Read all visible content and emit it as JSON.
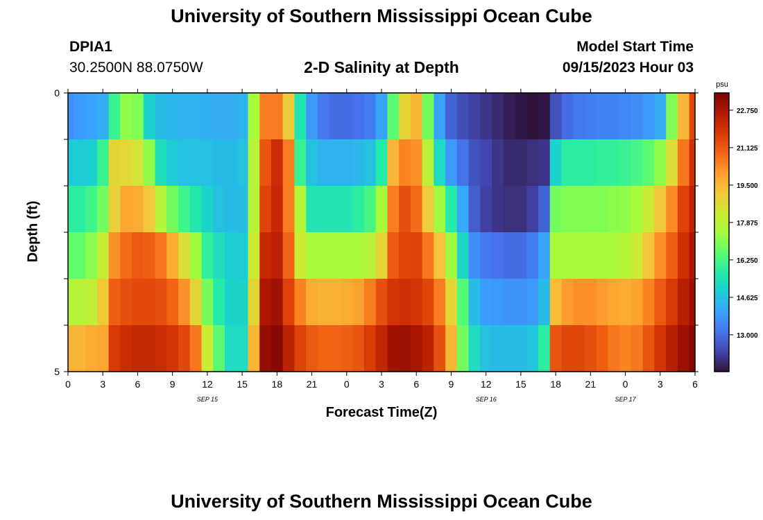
{
  "header": {
    "title": "University of Southern Mississippi Ocean Cube",
    "station": "DPIA1",
    "coords": "30.2500N  88.0750W",
    "subtitle": "2-D Salinity at Depth",
    "model_start_label": "Model Start Time",
    "model_start_value": "09/15/2023 Hour 03"
  },
  "footer": {
    "title": "University of Southern Mississippi Ocean Cube"
  },
  "chart_data": {
    "type": "heatmap",
    "title": "2-D Salinity at Depth",
    "xlabel": "Forecast Time(Z)",
    "ylabel": "Depth (ft)",
    "x_tick_labels": [
      "0",
      "3",
      "6",
      "9",
      "12",
      "15",
      "18",
      "21",
      "0",
      "3",
      "6",
      "9",
      "12",
      "15",
      "18",
      "21",
      "0",
      "3",
      "6"
    ],
    "date_labels": [
      {
        "text": "SEP 15",
        "tick": "12"
      },
      {
        "text": "SEP 16",
        "tick": "12"
      },
      {
        "text": "SEP 17",
        "tick": "0"
      }
    ],
    "x_range_hours": [
      0,
      54
    ],
    "y_tick_labels": [
      "0",
      "5"
    ],
    "ylim": [
      0,
      5
    ],
    "colorbar": {
      "unit": "psu",
      "min": 11.4,
      "max": 23.5,
      "labels": [
        "22.750",
        "21.125",
        "19.500",
        "17.875",
        "16.250",
        "14.625",
        "13.000"
      ],
      "colormap": [
        "#30123b",
        "#4145ab",
        "#4675ed",
        "#39a2fc",
        "#1bcfd4",
        "#24eca6",
        "#61fc6c",
        "#a4fc3b",
        "#d1e834",
        "#f3c63a",
        "#fe9b2d",
        "#f36315",
        "#d93806",
        "#b11901",
        "#7a0402"
      ]
    },
    "time_hours": [
      0,
      1,
      2,
      3,
      4,
      5,
      6,
      7,
      8,
      9,
      10,
      11,
      12,
      13,
      14,
      15,
      16,
      17,
      18,
      19,
      20,
      21,
      22,
      23,
      24,
      25,
      26,
      27,
      28,
      29,
      30,
      31,
      32,
      33,
      34,
      35,
      36,
      37,
      38,
      39,
      40,
      41,
      42,
      43,
      44,
      45,
      46,
      47,
      48,
      49,
      50,
      51,
      52,
      53,
      54
    ],
    "depth_rows_ft": [
      0,
      1,
      2,
      3,
      4,
      5
    ],
    "salinity_psu": [
      [
        13.6,
        13.8,
        14.0,
        14.2,
        16.0,
        17.2,
        17.0,
        15.0,
        14.5,
        14.4,
        14.3,
        14.3,
        14.2,
        14.2,
        14.2,
        14.3,
        17.5,
        20.5,
        20.5,
        19.0,
        15.5,
        13.8,
        13.2,
        13.0,
        13.0,
        13.1,
        13.3,
        14.0,
        16.5,
        18.8,
        19.5,
        16.8,
        14.0,
        12.8,
        12.4,
        12.2,
        12.0,
        11.8,
        11.6,
        11.5,
        11.4,
        11.5,
        12.5,
        13.0,
        13.2,
        13.3,
        13.4,
        13.4,
        13.5,
        13.6,
        13.8,
        14.2,
        17.0,
        19.5,
        21.5
      ],
      [
        14.8,
        14.8,
        14.9,
        16.0,
        18.8,
        18.7,
        18.4,
        17.2,
        15.3,
        14.8,
        14.6,
        14.6,
        14.6,
        14.5,
        14.5,
        14.6,
        17.8,
        21.2,
        22.1,
        20.5,
        16.0,
        14.6,
        14.3,
        14.3,
        14.3,
        14.4,
        14.6,
        15.7,
        19.5,
        20.4,
        20.2,
        17.9,
        15.2,
        13.8,
        13.1,
        12.5,
        12.3,
        12.0,
        11.8,
        11.8,
        11.9,
        12.0,
        15.0,
        15.8,
        15.8,
        15.8,
        15.9,
        15.9,
        16.0,
        16.2,
        16.5,
        17.2,
        18.6,
        20.6,
        22.0
      ],
      [
        15.8,
        15.8,
        16.1,
        16.8,
        18.9,
        19.8,
        19.7,
        19.1,
        17.8,
        16.8,
        16.1,
        15.6,
        15.0,
        14.6,
        14.5,
        14.5,
        17.8,
        21.6,
        22.2,
        20.5,
        17.8,
        15.5,
        15.5,
        15.5,
        15.5,
        15.8,
        16.2,
        17.5,
        20.5,
        21.3,
        20.8,
        19.0,
        17.4,
        15.7,
        14.1,
        12.7,
        12.2,
        12.0,
        11.9,
        11.9,
        12.2,
        12.8,
        16.8,
        17.0,
        17.0,
        17.0,
        17.0,
        17.1,
        17.2,
        17.5,
        18.2,
        19.2,
        20.3,
        21.6,
        22.4
      ],
      [
        16.6,
        16.6,
        17.1,
        18.1,
        20.2,
        20.8,
        21.1,
        21.0,
        20.6,
        19.7,
        18.6,
        17.4,
        15.9,
        15.3,
        14.9,
        14.8,
        18.2,
        22.2,
        22.4,
        20.9,
        18.2,
        17.5,
        17.5,
        17.5,
        17.5,
        17.6,
        17.8,
        18.8,
        21.1,
        21.5,
        21.6,
        20.6,
        19.2,
        17.4,
        15.1,
        13.6,
        13.2,
        13.1,
        13.0,
        13.0,
        13.3,
        14.0,
        17.6,
        17.6,
        17.6,
        17.5,
        17.5,
        17.6,
        17.8,
        18.2,
        19.2,
        20.2,
        21.0,
        22.0,
        22.7
      ],
      [
        17.8,
        17.8,
        18.0,
        19.1,
        21.0,
        21.3,
        21.4,
        21.4,
        21.3,
        20.9,
        20.2,
        18.8,
        16.9,
        15.7,
        15.0,
        15.0,
        18.8,
        22.7,
        22.9,
        21.6,
        20.4,
        19.7,
        19.6,
        19.6,
        19.7,
        19.9,
        20.5,
        21.3,
        21.9,
        22.0,
        21.9,
        21.5,
        20.5,
        18.8,
        16.4,
        14.5,
        13.9,
        13.8,
        13.7,
        13.7,
        13.8,
        14.5,
        19.4,
        20.0,
        20.2,
        20.2,
        20.0,
        19.8,
        19.7,
        19.9,
        20.4,
        21.1,
        21.8,
        22.5,
        23.0
      ],
      [
        19.5,
        19.5,
        19.7,
        19.8,
        21.8,
        22.1,
        22.2,
        22.2,
        22.1,
        21.9,
        21.5,
        20.6,
        18.2,
        16.5,
        15.2,
        15.2,
        19.5,
        23.1,
        23.3,
        22.4,
        21.6,
        21.1,
        20.9,
        20.9,
        21.0,
        21.2,
        21.7,
        22.3,
        22.9,
        23.0,
        22.8,
        22.4,
        21.3,
        19.5,
        16.8,
        15.2,
        14.6,
        14.5,
        14.5,
        14.5,
        14.7,
        15.8,
        21.2,
        21.5,
        21.5,
        21.3,
        21.0,
        20.6,
        20.4,
        20.6,
        21.2,
        21.9,
        22.5,
        23.0,
        23.3
      ]
    ]
  }
}
